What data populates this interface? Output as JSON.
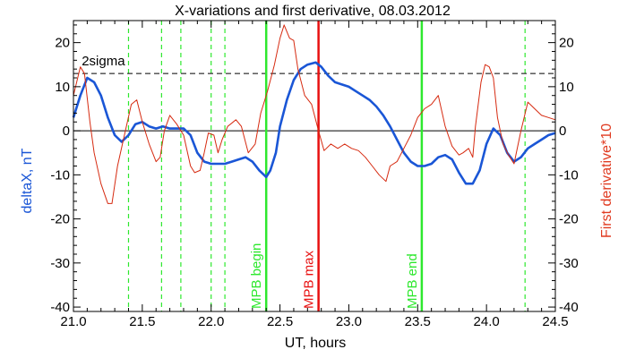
{
  "chart_data": {
    "type": "line",
    "title": "X-variations and first derivative, 08.03.2012",
    "xlabel": "UT, hours",
    "ylabel_left": "deltaX, nT",
    "ylabel_right": "First derivative*10",
    "xlim": [
      21.0,
      24.5
    ],
    "ylim": [
      -41,
      25
    ],
    "x_ticks": [
      21.0,
      21.5,
      22.0,
      22.5,
      23.0,
      23.5,
      24.0,
      24.5
    ],
    "x_tick_labels": [
      "21.0",
      "21.5",
      "22.0",
      "22.5",
      "23.0",
      "23.5",
      "24.0",
      "24.5"
    ],
    "y_ticks": [
      -40,
      -30,
      -20,
      -10,
      0,
      10,
      20
    ],
    "y_tick_labels": [
      "-40",
      "-30",
      "-20",
      "-10",
      "0",
      "10",
      "20"
    ],
    "colors": {
      "deltaX": "#1a56d6",
      "derivative": "#d62a10",
      "green": "#2ee82e",
      "red": "#e81010"
    },
    "series": [
      {
        "name": "deltaX",
        "axis": "left",
        "points": [
          [
            21.0,
            3
          ],
          [
            21.05,
            8
          ],
          [
            21.1,
            12
          ],
          [
            21.15,
            11
          ],
          [
            21.2,
            8
          ],
          [
            21.25,
            3
          ],
          [
            21.3,
            -1
          ],
          [
            21.35,
            -2.5
          ],
          [
            21.4,
            -1
          ],
          [
            21.45,
            1.5
          ],
          [
            21.5,
            2
          ],
          [
            21.55,
            1
          ],
          [
            21.6,
            0.5
          ],
          [
            21.65,
            1
          ],
          [
            21.7,
            0.5
          ],
          [
            21.75,
            0.5
          ],
          [
            21.8,
            0.5
          ],
          [
            21.85,
            -1
          ],
          [
            21.9,
            -5
          ],
          [
            21.95,
            -7
          ],
          [
            22.0,
            -7.5
          ],
          [
            22.05,
            -7.5
          ],
          [
            22.1,
            -7.5
          ],
          [
            22.15,
            -7
          ],
          [
            22.2,
            -6.5
          ],
          [
            22.25,
            -6
          ],
          [
            22.3,
            -7
          ],
          [
            22.35,
            -9
          ],
          [
            22.4,
            -10.5
          ],
          [
            22.43,
            -9
          ],
          [
            22.47,
            -5
          ],
          [
            22.5,
            1
          ],
          [
            22.55,
            7
          ],
          [
            22.6,
            11.5
          ],
          [
            22.65,
            14
          ],
          [
            22.7,
            15
          ],
          [
            22.76,
            15.5
          ],
          [
            22.8,
            14.5
          ],
          [
            22.85,
            12.5
          ],
          [
            22.9,
            11
          ],
          [
            22.95,
            10.5
          ],
          [
            23.0,
            10
          ],
          [
            23.05,
            9
          ],
          [
            23.1,
            8
          ],
          [
            23.15,
            7
          ],
          [
            23.2,
            5.5
          ],
          [
            23.25,
            3.5
          ],
          [
            23.3,
            1
          ],
          [
            23.35,
            -2
          ],
          [
            23.4,
            -5
          ],
          [
            23.45,
            -7
          ],
          [
            23.5,
            -8
          ],
          [
            23.55,
            -8
          ],
          [
            23.6,
            -7.5
          ],
          [
            23.65,
            -6
          ],
          [
            23.7,
            -5.5
          ],
          [
            23.75,
            -6.5
          ],
          [
            23.8,
            -9.5
          ],
          [
            23.85,
            -12
          ],
          [
            23.9,
            -12
          ],
          [
            23.95,
            -9
          ],
          [
            24.0,
            -3
          ],
          [
            24.05,
            0.5
          ],
          [
            24.1,
            -1
          ],
          [
            24.15,
            -5
          ],
          [
            24.2,
            -7
          ],
          [
            24.25,
            -6
          ],
          [
            24.3,
            -4
          ],
          [
            24.35,
            -3
          ],
          [
            24.4,
            -2
          ],
          [
            24.45,
            -1
          ],
          [
            24.5,
            -0.5
          ]
        ]
      },
      {
        "name": "First derivative*10",
        "axis": "right",
        "points": [
          [
            21.0,
            8
          ],
          [
            21.05,
            14.5
          ],
          [
            21.08,
            13
          ],
          [
            21.12,
            2
          ],
          [
            21.15,
            -5
          ],
          [
            21.2,
            -12
          ],
          [
            21.25,
            -16.5
          ],
          [
            21.28,
            -16.5
          ],
          [
            21.32,
            -8
          ],
          [
            21.37,
            -1
          ],
          [
            21.42,
            6
          ],
          [
            21.46,
            7
          ],
          [
            21.5,
            2
          ],
          [
            21.55,
            -3
          ],
          [
            21.6,
            -7
          ],
          [
            21.63,
            -6
          ],
          [
            21.66,
            0
          ],
          [
            21.7,
            3.5
          ],
          [
            21.75,
            1.5
          ],
          [
            21.8,
            -1
          ],
          [
            21.85,
            -8
          ],
          [
            21.88,
            -9.5
          ],
          [
            21.92,
            -9
          ],
          [
            21.95,
            -5
          ],
          [
            21.98,
            -0.5
          ],
          [
            22.02,
            -1
          ],
          [
            22.05,
            -5
          ],
          [
            22.08,
            -2
          ],
          [
            22.12,
            1
          ],
          [
            22.18,
            2.5
          ],
          [
            22.22,
            1
          ],
          [
            22.27,
            -5
          ],
          [
            22.32,
            -3
          ],
          [
            22.36,
            4
          ],
          [
            22.41,
            9
          ],
          [
            22.46,
            15
          ],
          [
            22.5,
            21
          ],
          [
            22.53,
            24
          ],
          [
            22.57,
            21
          ],
          [
            22.6,
            20.5
          ],
          [
            22.63,
            14
          ],
          [
            22.68,
            8
          ],
          [
            22.73,
            6
          ],
          [
            22.78,
            0
          ],
          [
            22.82,
            -4.5
          ],
          [
            22.87,
            -3
          ],
          [
            22.92,
            -4
          ],
          [
            22.97,
            -3
          ],
          [
            23.02,
            -4
          ],
          [
            23.07,
            -4.5
          ],
          [
            23.12,
            -6
          ],
          [
            23.17,
            -8
          ],
          [
            23.22,
            -10
          ],
          [
            23.27,
            -11.5
          ],
          [
            23.3,
            -8
          ],
          [
            23.35,
            -7
          ],
          [
            23.4,
            -4
          ],
          [
            23.45,
            -1
          ],
          [
            23.5,
            3
          ],
          [
            23.55,
            5
          ],
          [
            23.6,
            6
          ],
          [
            23.65,
            8
          ],
          [
            23.7,
            1
          ],
          [
            23.75,
            -3.5
          ],
          [
            23.8,
            -5.5
          ],
          [
            23.83,
            -5
          ],
          [
            23.87,
            -4
          ],
          [
            23.9,
            -6
          ],
          [
            23.92,
            1
          ],
          [
            23.94,
            6
          ],
          [
            23.96,
            11
          ],
          [
            23.99,
            15
          ],
          [
            24.02,
            14.5
          ],
          [
            24.05,
            12
          ],
          [
            24.08,
            3
          ],
          [
            24.12,
            -3
          ],
          [
            24.16,
            -5.5
          ],
          [
            24.2,
            -7.5
          ],
          [
            24.25,
            0
          ],
          [
            24.3,
            6.5
          ],
          [
            24.35,
            5
          ],
          [
            24.4,
            3.5
          ],
          [
            24.45,
            3
          ],
          [
            24.5,
            2.5
          ]
        ]
      }
    ],
    "threshold_line": {
      "label": "2sigma",
      "y": 13
    },
    "zero_line": {
      "y": 0
    },
    "dashed_vlines": [
      21.4,
      21.64,
      21.78,
      22.0,
      22.1,
      24.28
    ],
    "markers": [
      {
        "x": 22.4,
        "label": "MPB begin",
        "color": "#2ee82e"
      },
      {
        "x": 22.78,
        "label": "MPB max",
        "color": "#e81010"
      },
      {
        "x": 23.53,
        "label": "MPB end",
        "color": "#2ee82e"
      }
    ]
  }
}
